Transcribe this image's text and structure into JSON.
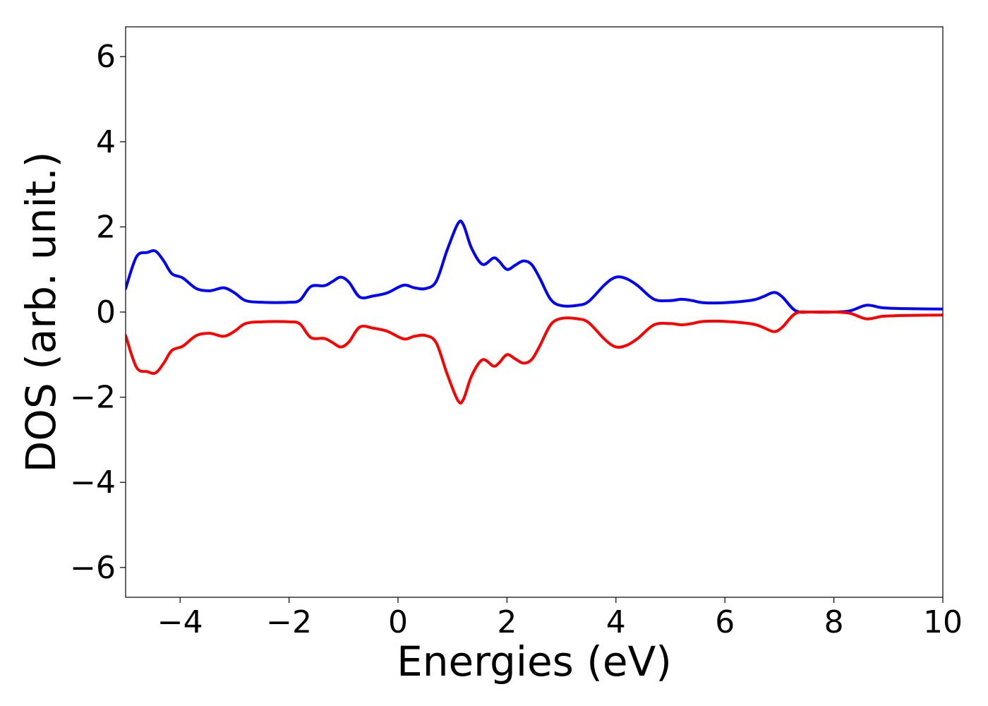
{
  "chart_data": {
    "type": "line",
    "title": "",
    "xlabel": "Energies (eV)",
    "ylabel": "DOS (arb. unit.)",
    "xlim": [
      -5,
      10
    ],
    "ylim": [
      -6.7,
      6.7
    ],
    "xticks": [
      -4,
      -2,
      0,
      2,
      4,
      6,
      8,
      10
    ],
    "xtick_labels": [
      "−4",
      "−2",
      "0",
      "2",
      "4",
      "6",
      "8",
      "10"
    ],
    "yticks": [
      -6,
      -4,
      -2,
      0,
      2,
      4,
      6
    ],
    "ytick_labels": [
      "−6",
      "−4",
      "−2",
      "0",
      "2",
      "4",
      "6"
    ],
    "grid": false,
    "legend": "none",
    "series": [
      {
        "color": "#0000ff",
        "points": [
          [
            -5.0,
            0.55
          ],
          [
            -4.8,
            1.3
          ],
          [
            -4.6,
            1.4
          ],
          [
            -4.45,
            1.43
          ],
          [
            -4.3,
            1.2
          ],
          [
            -4.15,
            0.9
          ],
          [
            -3.95,
            0.8
          ],
          [
            -3.7,
            0.55
          ],
          [
            -3.45,
            0.5
          ],
          [
            -3.2,
            0.57
          ],
          [
            -3.0,
            0.45
          ],
          [
            -2.8,
            0.27
          ],
          [
            -2.5,
            0.23
          ],
          [
            -2.0,
            0.23
          ],
          [
            -1.8,
            0.28
          ],
          [
            -1.6,
            0.6
          ],
          [
            -1.35,
            0.62
          ],
          [
            -1.2,
            0.72
          ],
          [
            -1.05,
            0.82
          ],
          [
            -0.9,
            0.7
          ],
          [
            -0.7,
            0.35
          ],
          [
            -0.45,
            0.38
          ],
          [
            -0.2,
            0.45
          ],
          [
            0.1,
            0.63
          ],
          [
            0.3,
            0.57
          ],
          [
            0.5,
            0.55
          ],
          [
            0.7,
            0.72
          ],
          [
            0.9,
            1.45
          ],
          [
            1.1,
            2.08
          ],
          [
            1.2,
            2.05
          ],
          [
            1.35,
            1.5
          ],
          [
            1.55,
            1.12
          ],
          [
            1.75,
            1.27
          ],
          [
            1.85,
            1.2
          ],
          [
            2.0,
            1.0
          ],
          [
            2.15,
            1.1
          ],
          [
            2.3,
            1.2
          ],
          [
            2.45,
            1.12
          ],
          [
            2.6,
            0.8
          ],
          [
            2.8,
            0.3
          ],
          [
            3.0,
            0.15
          ],
          [
            3.3,
            0.16
          ],
          [
            3.5,
            0.25
          ],
          [
            3.8,
            0.65
          ],
          [
            4.0,
            0.82
          ],
          [
            4.2,
            0.78
          ],
          [
            4.4,
            0.62
          ],
          [
            4.7,
            0.3
          ],
          [
            5.0,
            0.27
          ],
          [
            5.2,
            0.3
          ],
          [
            5.4,
            0.27
          ],
          [
            5.6,
            0.22
          ],
          [
            6.0,
            0.22
          ],
          [
            6.5,
            0.28
          ],
          [
            6.7,
            0.36
          ],
          [
            6.9,
            0.46
          ],
          [
            7.05,
            0.36
          ],
          [
            7.3,
            0.03
          ],
          [
            7.6,
            0.0
          ],
          [
            8.0,
            0.0
          ],
          [
            8.3,
            0.03
          ],
          [
            8.6,
            0.16
          ],
          [
            8.9,
            0.1
          ],
          [
            9.3,
            0.08
          ],
          [
            10.0,
            0.07
          ]
        ]
      },
      {
        "color": "#ff0000",
        "points": [
          [
            -5.0,
            -0.55
          ],
          [
            -4.8,
            -1.3
          ],
          [
            -4.6,
            -1.4
          ],
          [
            -4.45,
            -1.43
          ],
          [
            -4.3,
            -1.2
          ],
          [
            -4.15,
            -0.9
          ],
          [
            -3.95,
            -0.8
          ],
          [
            -3.7,
            -0.55
          ],
          [
            -3.45,
            -0.5
          ],
          [
            -3.2,
            -0.57
          ],
          [
            -3.0,
            -0.45
          ],
          [
            -2.8,
            -0.27
          ],
          [
            -2.5,
            -0.23
          ],
          [
            -2.0,
            -0.23
          ],
          [
            -1.8,
            -0.28
          ],
          [
            -1.6,
            -0.6
          ],
          [
            -1.35,
            -0.62
          ],
          [
            -1.2,
            -0.72
          ],
          [
            -1.05,
            -0.82
          ],
          [
            -0.9,
            -0.7
          ],
          [
            -0.7,
            -0.35
          ],
          [
            -0.45,
            -0.38
          ],
          [
            -0.2,
            -0.45
          ],
          [
            0.1,
            -0.63
          ],
          [
            0.3,
            -0.57
          ],
          [
            0.5,
            -0.55
          ],
          [
            0.7,
            -0.72
          ],
          [
            0.9,
            -1.45
          ],
          [
            1.1,
            -2.08
          ],
          [
            1.2,
            -2.05
          ],
          [
            1.35,
            -1.5
          ],
          [
            1.55,
            -1.12
          ],
          [
            1.75,
            -1.27
          ],
          [
            1.85,
            -1.2
          ],
          [
            2.0,
            -1.0
          ],
          [
            2.15,
            -1.1
          ],
          [
            2.3,
            -1.2
          ],
          [
            2.45,
            -1.12
          ],
          [
            2.6,
            -0.8
          ],
          [
            2.8,
            -0.3
          ],
          [
            3.0,
            -0.15
          ],
          [
            3.3,
            -0.16
          ],
          [
            3.5,
            -0.25
          ],
          [
            3.8,
            -0.65
          ],
          [
            4.0,
            -0.82
          ],
          [
            4.2,
            -0.78
          ],
          [
            4.4,
            -0.62
          ],
          [
            4.7,
            -0.3
          ],
          [
            5.0,
            -0.27
          ],
          [
            5.2,
            -0.3
          ],
          [
            5.4,
            -0.27
          ],
          [
            5.6,
            -0.22
          ],
          [
            6.0,
            -0.22
          ],
          [
            6.5,
            -0.28
          ],
          [
            6.7,
            -0.36
          ],
          [
            6.9,
            -0.46
          ],
          [
            7.05,
            -0.36
          ],
          [
            7.3,
            -0.03
          ],
          [
            7.6,
            0.0
          ],
          [
            8.0,
            0.0
          ],
          [
            8.3,
            -0.03
          ],
          [
            8.6,
            -0.16
          ],
          [
            8.9,
            -0.1
          ],
          [
            9.3,
            -0.08
          ],
          [
            10.0,
            -0.07
          ]
        ]
      }
    ]
  }
}
